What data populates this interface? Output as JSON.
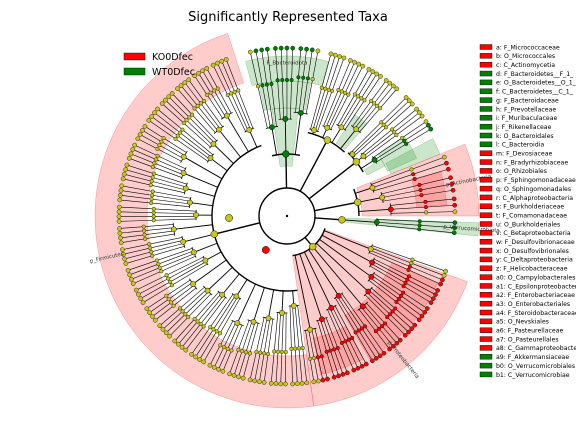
{
  "chart_data": {
    "type": "cladogram",
    "title": "Significantly Represented Taxa",
    "classes": [
      {
        "name": "KO0Dfec",
        "color": "#ff0000"
      },
      {
        "name": "WT0Dfec",
        "color": "#008000"
      }
    ],
    "clade_sectors": [
      {
        "label": "F_Bacteroidota",
        "group": "WT0Dfec",
        "start": -15,
        "end": 15,
        "rin": 135,
        "rout": 160
      },
      {
        "label": "",
        "group": "WT0Dfec",
        "start": -12,
        "end": 10,
        "rin": 108,
        "rout": 135
      },
      {
        "label": "",
        "group": "WT0Dfec",
        "start": -8,
        "end": 6,
        "rin": 50,
        "rout": 108
      },
      {
        "label": "",
        "group": "WT0Dfec",
        "start": 34,
        "end": 41,
        "rin": 88,
        "rout": 122
      },
      {
        "label": "",
        "group": "WT0Dfec",
        "start": 56,
        "end": 66,
        "rin": 110,
        "rout": 142
      },
      {
        "label": "",
        "group": "WT0Dfec",
        "start": 59,
        "end": 63,
        "rin": 90,
        "rout": 110
      },
      {
        "label": "",
        "group": "WT0Dfec",
        "start": 62,
        "end": 68,
        "rin": 112,
        "rout": 165
      },
      {
        "label": "p_Verrucomicrobiota",
        "group": "WT0Dfec",
        "start": 92,
        "end": 96,
        "rin": 55,
        "rout": 192
      },
      {
        "label": "p_Actinobacteria",
        "group": "KO0Dfec",
        "start": 68,
        "end": 90,
        "rin": 75,
        "rout": 192
      },
      {
        "label": "",
        "group": "KO0Dfec",
        "start": 74,
        "end": 86,
        "rin": 130,
        "rout": 160
      },
      {
        "label": "p_Proteobacteria",
        "group": "KO0Dfec",
        "start": 110,
        "end": 172,
        "rin": 40,
        "rout": 192
      },
      {
        "label": "",
        "group": "KO0Dfec",
        "start": 114,
        "end": 150,
        "rin": 115,
        "rout": 165
      },
      {
        "label": "",
        "group": "KO0Dfec",
        "start": 152,
        "end": 168,
        "rin": 125,
        "rout": 162
      },
      {
        "label": "p_Firmicutes",
        "group": "KO0Dfec",
        "start": 172,
        "end": 342,
        "rin": 140,
        "rout": 192
      }
    ],
    "key": [
      {
        "code": "a",
        "name": "F_Micrococcaceae",
        "group": "KO0Dfec"
      },
      {
        "code": "b",
        "name": "O_Micrococcales",
        "group": "KO0Dfec"
      },
      {
        "code": "c",
        "name": "C_Actinomycetia",
        "group": "KO0Dfec"
      },
      {
        "code": "d",
        "name": "F_Bacteroidetes__F_1_",
        "group": "WT0Dfec"
      },
      {
        "code": "e",
        "name": "O_Bacteroidetes__O_1_",
        "group": "WT0Dfec"
      },
      {
        "code": "f",
        "name": "C_Bacteroidetes__C_1_",
        "group": "WT0Dfec"
      },
      {
        "code": "g",
        "name": "F_Bacteroidaceae",
        "group": "WT0Dfec"
      },
      {
        "code": "h",
        "name": "F_Prevotellaceae",
        "group": "WT0Dfec"
      },
      {
        "code": "i",
        "name": "F_Muribaculaceae",
        "group": "WT0Dfec"
      },
      {
        "code": "j",
        "name": "F_Rikenellaceae",
        "group": "WT0Dfec"
      },
      {
        "code": "k",
        "name": "O_Bacteroidales",
        "group": "WT0Dfec"
      },
      {
        "code": "l",
        "name": "C_Bacteroidia",
        "group": "WT0Dfec"
      },
      {
        "code": "m",
        "name": "F_Devosiaceae",
        "group": "KO0Dfec"
      },
      {
        "code": "n",
        "name": "F_Bradyrhizobiaceae",
        "group": "KO0Dfec"
      },
      {
        "code": "o",
        "name": "O_Rhizobiales",
        "group": "KO0Dfec"
      },
      {
        "code": "p",
        "name": "F_Sphingomonadaceae",
        "group": "KO0Dfec"
      },
      {
        "code": "q",
        "name": "O_Sphingomonadales",
        "group": "KO0Dfec"
      },
      {
        "code": "r",
        "name": "C_Alphaproteobacteria",
        "group": "KO0Dfec"
      },
      {
        "code": "s",
        "name": "F_Burkholderiaceae",
        "group": "KO0Dfec"
      },
      {
        "code": "t",
        "name": "F_Comamonadaceae",
        "group": "KO0Dfec"
      },
      {
        "code": "u",
        "name": "O_Burkholderiales",
        "group": "KO0Dfec"
      },
      {
        "code": "v",
        "name": "C_Betaproteobacteria",
        "group": "KO0Dfec"
      },
      {
        "code": "w",
        "name": "F_Desulfovibrionaceae",
        "group": "KO0Dfec"
      },
      {
        "code": "x",
        "name": "O_Desulfovibrionales",
        "group": "KO0Dfec"
      },
      {
        "code": "y",
        "name": "C_Deltaproteobacteria",
        "group": "KO0Dfec"
      },
      {
        "code": "z",
        "name": "F_Helicobacteraceae",
        "group": "KO0Dfec"
      },
      {
        "code": "a0",
        "name": "O_Campylobacterales",
        "group": "KO0Dfec"
      },
      {
        "code": "a1",
        "name": "C_Epsilonproteobacteria",
        "group": "KO0Dfec"
      },
      {
        "code": "a2",
        "name": "F_Enterobacteriaceae",
        "group": "KO0Dfec"
      },
      {
        "code": "a3",
        "name": "O_Enterobacteriales",
        "group": "KO0Dfec"
      },
      {
        "code": "a4",
        "name": "F_Steroidobacteraceae",
        "group": "KO0Dfec"
      },
      {
        "code": "a5",
        "name": "O_Nevskiales",
        "group": "KO0Dfec"
      },
      {
        "code": "a6",
        "name": "F_Pasteurellaceae",
        "group": "KO0Dfec"
      },
      {
        "code": "a7",
        "name": "O_Pasteurellales",
        "group": "KO0Dfec"
      },
      {
        "code": "a8",
        "name": "C_Gammaproteobacteria",
        "group": "KO0Dfec"
      },
      {
        "code": "a9",
        "name": "F_Akkermansiaceae",
        "group": "WT0Dfec"
      },
      {
        "code": "b0",
        "name": "O_Verrucomicrobiales",
        "group": "WT0Dfec"
      },
      {
        "code": "b1",
        "name": "C_Verrucomicrobiae",
        "group": "WT0Dfec"
      }
    ],
    "node_colors": {
      "neutral": "#c8c81a",
      "KO0Dfec": "#ff0000",
      "WT0Dfec": "#008000"
    }
  }
}
